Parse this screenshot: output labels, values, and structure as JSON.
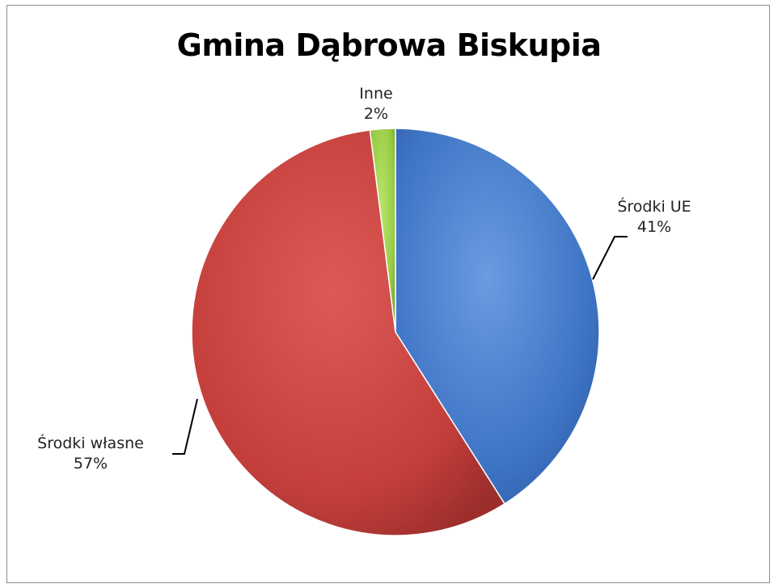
{
  "chart_data": {
    "type": "pie",
    "title": "Gmina Dąbrowa Biskupia",
    "slices": [
      {
        "label": "Środki UE",
        "value": 41,
        "value_label": "41%",
        "color": "#4a7ecb"
      },
      {
        "label": "Środki własne",
        "value": 57,
        "value_label": "57%",
        "color": "#c84441"
      },
      {
        "label": "Inne",
        "value": 2,
        "value_label": "2%",
        "color": "#9bd14a"
      }
    ],
    "start": "12 o'clock",
    "direction": "clockwise",
    "legend": "none"
  }
}
